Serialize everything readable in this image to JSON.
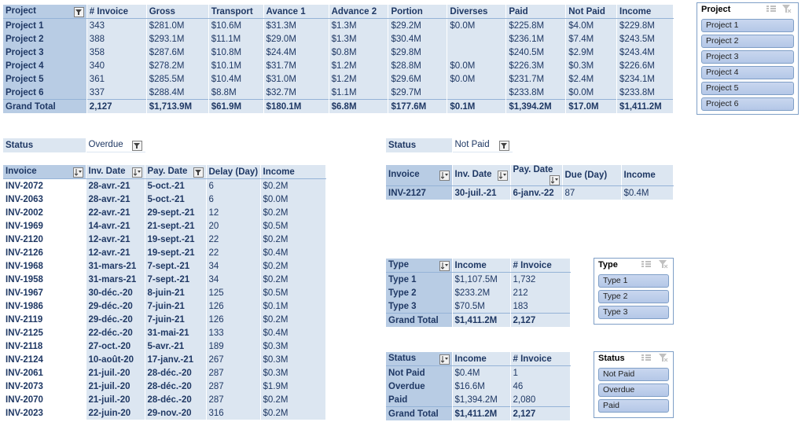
{
  "pivot_main": {
    "headers": [
      "Project",
      "# Invoice",
      "Gross",
      "Transport",
      "Avance 1",
      "Advance 2",
      "Portion",
      "Diverses",
      "Paid",
      "Not Paid",
      "Income"
    ],
    "rows": [
      [
        "Project 1",
        "343",
        "$281.0M",
        "$10.6M",
        "$31.3M",
        "$1.3M",
        "$29.2M",
        "$0.0M",
        "$225.8M",
        "$4.0M",
        "$229.8M"
      ],
      [
        "Project 2",
        "388",
        "$293.1M",
        "$11.1M",
        "$29.0M",
        "$1.3M",
        "$30.4M",
        "",
        "$236.1M",
        "$7.4M",
        "$243.5M"
      ],
      [
        "Project 3",
        "358",
        "$287.6M",
        "$10.8M",
        "$24.4M",
        "$0.8M",
        "$29.8M",
        "",
        "$240.5M",
        "$2.9M",
        "$243.4M"
      ],
      [
        "Project 4",
        "340",
        "$278.2M",
        "$10.1M",
        "$31.7M",
        "$1.2M",
        "$28.8M",
        "$0.0M",
        "$226.3M",
        "$0.3M",
        "$226.6M"
      ],
      [
        "Project 5",
        "361",
        "$285.5M",
        "$10.4M",
        "$31.0M",
        "$1.2M",
        "$29.6M",
        "$0.0M",
        "$231.7M",
        "$2.4M",
        "$234.1M"
      ],
      [
        "Project 6",
        "337",
        "$288.4M",
        "$8.8M",
        "$32.7M",
        "$1.1M",
        "$29.7M",
        "",
        "$233.8M",
        "$0.0M",
        "$233.8M"
      ]
    ],
    "total": [
      "Grand Total",
      "2,127",
      "$1,713.9M",
      "$61.9M",
      "$180.1M",
      "$6.8M",
      "$177.6M",
      "$0.1M",
      "$1,394.2M",
      "$17.0M",
      "$1,411.2M"
    ]
  },
  "slicer_project": {
    "title": "Project",
    "items": [
      "Project 1",
      "Project 2",
      "Project 3",
      "Project 4",
      "Project 5",
      "Project 6"
    ]
  },
  "overdue": {
    "filter_label": "Status",
    "filter_value": "Overdue",
    "headers": [
      "Invoice",
      "Inv. Date",
      "Pay. Date",
      "Delay (Day)",
      "Income"
    ],
    "rows": [
      [
        "INV-2072",
        "28-avr.-21",
        "5-oct.-21",
        "6",
        "$0.2M"
      ],
      [
        "INV-2063",
        "28-avr.-21",
        "5-oct.-21",
        "6",
        "$0.0M"
      ],
      [
        "INV-2002",
        "22-avr.-21",
        "29-sept.-21",
        "12",
        "$0.2M"
      ],
      [
        "INV-1969",
        "14-avr.-21",
        "21-sept.-21",
        "20",
        "$0.5M"
      ],
      [
        "INV-2120",
        "12-avr.-21",
        "19-sept.-21",
        "22",
        "$0.2M"
      ],
      [
        "INV-2126",
        "12-avr.-21",
        "19-sept.-21",
        "22",
        "$0.4M"
      ],
      [
        "INV-1968",
        "31-mars-21",
        "7-sept.-21",
        "34",
        "$0.2M"
      ],
      [
        "INV-1958",
        "31-mars-21",
        "7-sept.-21",
        "34",
        "$0.2M"
      ],
      [
        "INV-1967",
        "30-déc.-20",
        "8-juin-21",
        "125",
        "$0.5M"
      ],
      [
        "INV-1986",
        "29-déc.-20",
        "7-juin-21",
        "126",
        "$0.1M"
      ],
      [
        "INV-2119",
        "29-déc.-20",
        "7-juin-21",
        "126",
        "$0.2M"
      ],
      [
        "INV-2125",
        "22-déc.-20",
        "31-mai-21",
        "133",
        "$0.4M"
      ],
      [
        "INV-2118",
        "27-oct.-20",
        "5-avr.-21",
        "189",
        "$0.3M"
      ],
      [
        "INV-2124",
        "10-août-20",
        "17-janv.-21",
        "267",
        "$0.3M"
      ],
      [
        "INV-2061",
        "21-juil.-20",
        "28-déc.-20",
        "287",
        "$0.3M"
      ],
      [
        "INV-2073",
        "21-juil.-20",
        "28-déc.-20",
        "287",
        "$1.9M"
      ],
      [
        "INV-2070",
        "21-juil.-20",
        "28-déc.-20",
        "287",
        "$0.2M"
      ],
      [
        "INV-2023",
        "22-juin-20",
        "29-nov.-20",
        "316",
        "$0.2M"
      ]
    ]
  },
  "notpaid": {
    "filter_label": "Status",
    "filter_value": "Not Paid",
    "headers": [
      "Invoice",
      "Inv. Date",
      "Pay. Date",
      "Due (Day)",
      "Income"
    ],
    "rows": [
      [
        "INV-2127",
        "30-juil.-21",
        "6-janv.-22",
        "87",
        "$0.4M"
      ]
    ]
  },
  "type_pivot": {
    "headers": [
      "Type",
      "Income",
      "# Invoice"
    ],
    "rows": [
      [
        "Type 1",
        "$1,107.5M",
        "1,732"
      ],
      [
        "Type 2",
        "$233.2M",
        "212"
      ],
      [
        "Type 3",
        "$70.5M",
        "183"
      ]
    ],
    "total": [
      "Grand Total",
      "$1,411.2M",
      "2,127"
    ]
  },
  "slicer_type": {
    "title": "Type",
    "items": [
      "Type 1",
      "Type 2",
      "Type 3"
    ]
  },
  "status_pivot": {
    "headers": [
      "Status",
      "Income",
      "# Invoice"
    ],
    "rows": [
      [
        "Not Paid",
        "$0.4M",
        "1"
      ],
      [
        "Overdue",
        "$16.6M",
        "46"
      ],
      [
        "Paid",
        "$1,394.2M",
        "2,080"
      ]
    ],
    "total": [
      "Grand Total",
      "$1,411.2M",
      "2,127"
    ]
  },
  "slicer_status": {
    "title": "Status",
    "items": [
      "Not Paid",
      "Overdue",
      "Paid"
    ]
  }
}
